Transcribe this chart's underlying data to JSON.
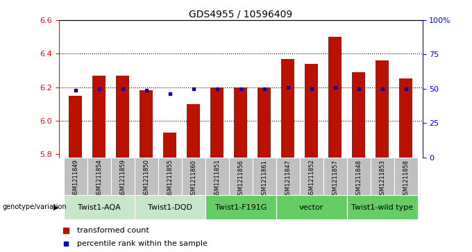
{
  "title": "GDS4955 / 10596409",
  "samples": [
    "GSM1211849",
    "GSM1211854",
    "GSM1211859",
    "GSM1211850",
    "GSM1211855",
    "GSM1211860",
    "GSM1211851",
    "GSM1211856",
    "GSM1211861",
    "GSM1211847",
    "GSM1211852",
    "GSM1211857",
    "GSM1211848",
    "GSM1211853",
    "GSM1211858"
  ],
  "red_values": [
    6.15,
    6.27,
    6.27,
    6.18,
    5.93,
    6.1,
    6.2,
    6.2,
    6.2,
    6.37,
    6.34,
    6.5,
    6.29,
    6.36,
    6.25
  ],
  "blue_values": [
    6.18,
    6.19,
    6.19,
    6.18,
    6.16,
    6.19,
    6.19,
    6.19,
    6.19,
    6.2,
    6.19,
    6.2,
    6.19,
    6.19,
    6.19
  ],
  "y_min": 5.78,
  "y_max": 6.6,
  "y_ticks": [
    5.8,
    6.0,
    6.2,
    6.4,
    6.6
  ],
  "y2_ticks": [
    0,
    25,
    50,
    75,
    100
  ],
  "y2_labels": [
    "0",
    "25",
    "50",
    "75",
    "100%"
  ],
  "groups": [
    {
      "label": "Twist1-AQA",
      "start": 0,
      "end": 3,
      "color": "#c8e6c9"
    },
    {
      "label": "Twist1-DQD",
      "start": 3,
      "end": 6,
      "color": "#c8e6c9"
    },
    {
      "label": "Twist1-F191G",
      "start": 6,
      "end": 9,
      "color": "#66cc66"
    },
    {
      "label": "vector",
      "start": 9,
      "end": 12,
      "color": "#66cc66"
    },
    {
      "label": "Twist1-wild type",
      "start": 12,
      "end": 15,
      "color": "#66cc66"
    }
  ],
  "genotype_label": "genotype/variation",
  "legend_red": "transformed count",
  "legend_blue": "percentile rank within the sample",
  "bar_color": "#bb1100",
  "blue_color": "#0000bb",
  "bar_width": 0.55,
  "baseline": 5.78,
  "sample_bg": "#c0c0c0",
  "title_fontsize": 10,
  "tick_fontsize": 8,
  "sample_fontsize": 6,
  "group_fontsize": 8,
  "legend_fontsize": 8
}
